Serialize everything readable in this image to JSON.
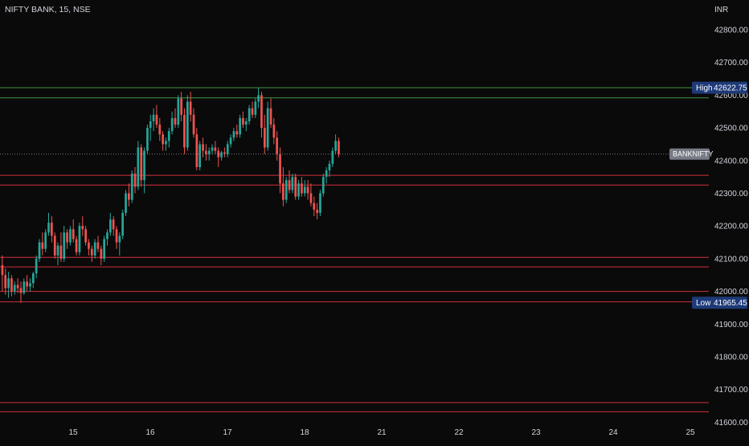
{
  "header": {
    "symbol_label": "NIFTY BANK, 15, NSE",
    "currency": "INR"
  },
  "colors": {
    "background": "#0a0a0a",
    "up": "#26a69a",
    "down": "#ef5350",
    "support_resistance_line": "#f23645",
    "high_line": "#4caf50",
    "badge_blue": "#1e3a78",
    "badge_grey": "#787b86",
    "axis_text": "#d1d4dc"
  },
  "badges": {
    "high": {
      "label": "High",
      "value": "42622.75"
    },
    "low": {
      "label": "Low",
      "value": "41965.45"
    },
    "ticker": {
      "label": "BANKNIFTY",
      "value": 42420
    }
  },
  "chart_data": {
    "type": "candlestick",
    "title": "NIFTY BANK, 15, NSE",
    "ylabel": "INR",
    "ylim": [
      41600,
      42850
    ],
    "yticks": [
      "42800.00",
      "42700.00",
      "42600.00",
      "42500.00",
      "42400.00",
      "42300.00",
      "42200.00",
      "42100.00",
      "42000.00",
      "41900.00",
      "41800.00",
      "41700.00",
      "41600.00"
    ],
    "xticks": [
      "15",
      "16",
      "17",
      "18",
      "21",
      "22",
      "23",
      "24",
      "25"
    ],
    "sessions_with_data": 5,
    "bars_per_session": 25,
    "high": 42622.75,
    "low": 41965.45,
    "last_price": 42420,
    "grid": false,
    "horizontal_levels": [
      {
        "value": 42622.75,
        "color": "green"
      },
      {
        "value": 42592,
        "color": "green"
      },
      {
        "value": 42355,
        "color": "red"
      },
      {
        "value": 42325,
        "color": "red"
      },
      {
        "value": 42104,
        "color": "red"
      },
      {
        "value": 42075,
        "color": "red"
      },
      {
        "value": 42000,
        "color": "red"
      },
      {
        "value": 41968,
        "color": "red"
      },
      {
        "value": 41660,
        "color": "red"
      },
      {
        "value": 41632,
        "color": "red"
      }
    ],
    "candles": [
      {
        "o": 42080,
        "h": 42110,
        "l": 42000,
        "c": 42050
      },
      {
        "o": 42050,
        "h": 42070,
        "l": 41990,
        "c": 42010
      },
      {
        "o": 42010,
        "h": 42060,
        "l": 41980,
        "c": 42040
      },
      {
        "o": 42040,
        "h": 42050,
        "l": 41985,
        "c": 42000
      },
      {
        "o": 42000,
        "h": 42030,
        "l": 41990,
        "c": 42020
      },
      {
        "o": 42020,
        "h": 42040,
        "l": 41995,
        "c": 42010
      },
      {
        "o": 42010,
        "h": 42030,
        "l": 41965,
        "c": 41995
      },
      {
        "o": 41995,
        "h": 42040,
        "l": 41990,
        "c": 42030
      },
      {
        "o": 42030,
        "h": 42050,
        "l": 42000,
        "c": 42015
      },
      {
        "o": 42015,
        "h": 42040,
        "l": 42000,
        "c": 42025
      },
      {
        "o": 42025,
        "h": 42060,
        "l": 42010,
        "c": 42055
      },
      {
        "o": 42055,
        "h": 42110,
        "l": 42040,
        "c": 42100
      },
      {
        "o": 42100,
        "h": 42160,
        "l": 42090,
        "c": 42150
      },
      {
        "o": 42150,
        "h": 42180,
        "l": 42110,
        "c": 42130
      },
      {
        "o": 42130,
        "h": 42190,
        "l": 42120,
        "c": 42180
      },
      {
        "o": 42180,
        "h": 42240,
        "l": 42170,
        "c": 42210
      },
      {
        "o": 42210,
        "h": 42230,
        "l": 42150,
        "c": 42170
      },
      {
        "o": 42170,
        "h": 42180,
        "l": 42100,
        "c": 42110
      },
      {
        "o": 42110,
        "h": 42150,
        "l": 42080,
        "c": 42140
      },
      {
        "o": 42140,
        "h": 42180,
        "l": 42090,
        "c": 42100
      },
      {
        "o": 42100,
        "h": 42200,
        "l": 42090,
        "c": 42180
      },
      {
        "o": 42180,
        "h": 42190,
        "l": 42130,
        "c": 42150
      },
      {
        "o": 42150,
        "h": 42200,
        "l": 42140,
        "c": 42190
      },
      {
        "o": 42190,
        "h": 42220,
        "l": 42150,
        "c": 42160
      },
      {
        "o": 42160,
        "h": 42170,
        "l": 42110,
        "c": 42120
      },
      {
        "o": 42120,
        "h": 42210,
        "l": 42110,
        "c": 42200
      },
      {
        "o": 42200,
        "h": 42230,
        "l": 42170,
        "c": 42190
      },
      {
        "o": 42190,
        "h": 42200,
        "l": 42140,
        "c": 42150
      },
      {
        "o": 42150,
        "h": 42160,
        "l": 42110,
        "c": 42130
      },
      {
        "o": 42130,
        "h": 42140,
        "l": 42090,
        "c": 42110
      },
      {
        "o": 42110,
        "h": 42160,
        "l": 42100,
        "c": 42150
      },
      {
        "o": 42150,
        "h": 42170,
        "l": 42120,
        "c": 42130
      },
      {
        "o": 42130,
        "h": 42140,
        "l": 42080,
        "c": 42100
      },
      {
        "o": 42100,
        "h": 42170,
        "l": 42090,
        "c": 42160
      },
      {
        "o": 42160,
        "h": 42190,
        "l": 42140,
        "c": 42180
      },
      {
        "o": 42180,
        "h": 42240,
        "l": 42170,
        "c": 42220
      },
      {
        "o": 42220,
        "h": 42230,
        "l": 42170,
        "c": 42190
      },
      {
        "o": 42190,
        "h": 42200,
        "l": 42130,
        "c": 42150
      },
      {
        "o": 42150,
        "h": 42180,
        "l": 42110,
        "c": 42170
      },
      {
        "o": 42170,
        "h": 42250,
        "l": 42160,
        "c": 42240
      },
      {
        "o": 42240,
        "h": 42310,
        "l": 42230,
        "c": 42300
      },
      {
        "o": 42300,
        "h": 42330,
        "l": 42260,
        "c": 42280
      },
      {
        "o": 42280,
        "h": 42370,
        "l": 42270,
        "c": 42360
      },
      {
        "o": 42360,
        "h": 42380,
        "l": 42300,
        "c": 42320
      },
      {
        "o": 42320,
        "h": 42460,
        "l": 42310,
        "c": 42440
      },
      {
        "o": 42440,
        "h": 42450,
        "l": 42320,
        "c": 42340
      },
      {
        "o": 42340,
        "h": 42440,
        "l": 42300,
        "c": 42430
      },
      {
        "o": 42430,
        "h": 42510,
        "l": 42420,
        "c": 42500
      },
      {
        "o": 42500,
        "h": 42540,
        "l": 42460,
        "c": 42520
      },
      {
        "o": 42520,
        "h": 42560,
        "l": 42490,
        "c": 42540
      },
      {
        "o": 42540,
        "h": 42570,
        "l": 42500,
        "c": 42510
      },
      {
        "o": 42510,
        "h": 42530,
        "l": 42460,
        "c": 42480
      },
      {
        "o": 42480,
        "h": 42490,
        "l": 42430,
        "c": 42450
      },
      {
        "o": 42450,
        "h": 42470,
        "l": 42430,
        "c": 42460
      },
      {
        "o": 42460,
        "h": 42500,
        "l": 42440,
        "c": 42490
      },
      {
        "o": 42490,
        "h": 42550,
        "l": 42480,
        "c": 42530
      },
      {
        "o": 42530,
        "h": 42560,
        "l": 42500,
        "c": 42510
      },
      {
        "o": 42510,
        "h": 42600,
        "l": 42500,
        "c": 42590
      },
      {
        "o": 42590,
        "h": 42610,
        "l": 42520,
        "c": 42540
      },
      {
        "o": 42540,
        "h": 42560,
        "l": 42420,
        "c": 42440
      },
      {
        "o": 42440,
        "h": 42600,
        "l": 42430,
        "c": 42580
      },
      {
        "o": 42580,
        "h": 42610,
        "l": 42520,
        "c": 42540
      },
      {
        "o": 42540,
        "h": 42560,
        "l": 42470,
        "c": 42480
      },
      {
        "o": 42480,
        "h": 42500,
        "l": 42370,
        "c": 42380
      },
      {
        "o": 42380,
        "h": 42460,
        "l": 42370,
        "c": 42450
      },
      {
        "o": 42450,
        "h": 42470,
        "l": 42410,
        "c": 42430
      },
      {
        "o": 42430,
        "h": 42450,
        "l": 42400,
        "c": 42420
      },
      {
        "o": 42420,
        "h": 42440,
        "l": 42400,
        "c": 42430
      },
      {
        "o": 42430,
        "h": 42450,
        "l": 42420,
        "c": 42440
      },
      {
        "o": 42440,
        "h": 42460,
        "l": 42420,
        "c": 42430
      },
      {
        "o": 42430,
        "h": 42440,
        "l": 42380,
        "c": 42410
      },
      {
        "o": 42410,
        "h": 42430,
        "l": 42400,
        "c": 42425
      },
      {
        "o": 42425,
        "h": 42440,
        "l": 42410,
        "c": 42420
      },
      {
        "o": 42420,
        "h": 42460,
        "l": 42410,
        "c": 42450
      },
      {
        "o": 42450,
        "h": 42480,
        "l": 42440,
        "c": 42470
      },
      {
        "o": 42470,
        "h": 42500,
        "l": 42460,
        "c": 42490
      },
      {
        "o": 42490,
        "h": 42510,
        "l": 42470,
        "c": 42480
      },
      {
        "o": 42480,
        "h": 42540,
        "l": 42470,
        "c": 42530
      },
      {
        "o": 42530,
        "h": 42550,
        "l": 42500,
        "c": 42510
      },
      {
        "o": 42510,
        "h": 42530,
        "l": 42490,
        "c": 42520
      },
      {
        "o": 42520,
        "h": 42570,
        "l": 42510,
        "c": 42560
      },
      {
        "o": 42560,
        "h": 42580,
        "l": 42530,
        "c": 42540
      },
      {
        "o": 42540,
        "h": 42590,
        "l": 42530,
        "c": 42580
      },
      {
        "o": 42580,
        "h": 42622.75,
        "l": 42560,
        "c": 42600
      },
      {
        "o": 42600,
        "h": 42610,
        "l": 42470,
        "c": 42500
      },
      {
        "o": 42500,
        "h": 42540,
        "l": 42420,
        "c": 42440
      },
      {
        "o": 42440,
        "h": 42580,
        "l": 42430,
        "c": 42560
      },
      {
        "o": 42560,
        "h": 42590,
        "l": 42500,
        "c": 42510
      },
      {
        "o": 42510,
        "h": 42530,
        "l": 42450,
        "c": 42470
      },
      {
        "o": 42470,
        "h": 42490,
        "l": 42400,
        "c": 42420
      },
      {
        "o": 42420,
        "h": 42440,
        "l": 42300,
        "c": 42330
      },
      {
        "o": 42330,
        "h": 42380,
        "l": 42260,
        "c": 42280
      },
      {
        "o": 42280,
        "h": 42350,
        "l": 42270,
        "c": 42340
      },
      {
        "o": 42340,
        "h": 42370,
        "l": 42300,
        "c": 42310
      },
      {
        "o": 42310,
        "h": 42360,
        "l": 42300,
        "c": 42350
      },
      {
        "o": 42350,
        "h": 42360,
        "l": 42280,
        "c": 42290
      },
      {
        "o": 42290,
        "h": 42340,
        "l": 42280,
        "c": 42330
      },
      {
        "o": 42330,
        "h": 42350,
        "l": 42290,
        "c": 42300
      },
      {
        "o": 42300,
        "h": 42340,
        "l": 42290,
        "c": 42320
      },
      {
        "o": 42320,
        "h": 42340,
        "l": 42280,
        "c": 42300
      },
      {
        "o": 42300,
        "h": 42330,
        "l": 42260,
        "c": 42270
      },
      {
        "o": 42270,
        "h": 42290,
        "l": 42230,
        "c": 42250
      },
      {
        "o": 42250,
        "h": 42270,
        "l": 42220,
        "c": 42240
      },
      {
        "o": 42240,
        "h": 42310,
        "l": 42230,
        "c": 42300
      },
      {
        "o": 42300,
        "h": 42360,
        "l": 42290,
        "c": 42350
      },
      {
        "o": 42350,
        "h": 42380,
        "l": 42330,
        "c": 42370
      },
      {
        "o": 42370,
        "h": 42400,
        "l": 42350,
        "c": 42390
      },
      {
        "o": 42390,
        "h": 42440,
        "l": 42380,
        "c": 42430
      },
      {
        "o": 42430,
        "h": 42480,
        "l": 42420,
        "c": 42460
      },
      {
        "o": 42460,
        "h": 42470,
        "l": 42410,
        "c": 42420
      }
    ]
  }
}
